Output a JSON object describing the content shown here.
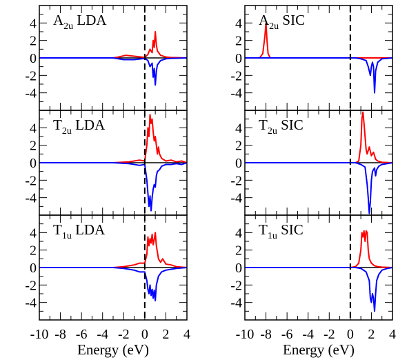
{
  "chart_data": {
    "type": "line",
    "layout": "3 rows x 2 columns, shared axes",
    "xlim": [
      -10,
      4
    ],
    "ylim": [
      -6,
      6
    ],
    "xticks": [
      "-10",
      "-8",
      "-6",
      "-4",
      "-2",
      "0",
      "2",
      "4"
    ],
    "yticks": [
      "4",
      "2",
      "0",
      "-2",
      "-4"
    ],
    "xlabel": "Energy (eV)",
    "fermi_level_x": 0,
    "series_colors": {
      "spin_up": "#ff0000",
      "spin_down": "#0000ff",
      "zero_line": "#000000",
      "fermi_line": "#000000"
    },
    "panels": [
      {
        "id": "a2u-lda",
        "row": 0,
        "col": 0,
        "title_main": "A",
        "title_sub": "2u",
        "title_rest": " LDA",
        "up": [
          [
            -10,
            0
          ],
          [
            -3.0,
            0
          ],
          [
            -2.5,
            0.1
          ],
          [
            -1.8,
            0.3
          ],
          [
            -1.0,
            0.2
          ],
          [
            -0.3,
            0.1
          ],
          [
            0,
            0.05
          ],
          [
            0.3,
            0.4
          ],
          [
            0.5,
            1.0
          ],
          [
            0.7,
            0.6
          ],
          [
            0.8,
            2.0
          ],
          [
            0.9,
            1.2
          ],
          [
            1.0,
            3.0
          ],
          [
            1.1,
            1.5
          ],
          [
            1.2,
            0.8
          ],
          [
            1.5,
            0.3
          ],
          [
            2.0,
            0.1
          ],
          [
            2.5,
            0.05
          ],
          [
            4,
            0
          ]
        ],
        "down": [
          [
            -10,
            0
          ],
          [
            -3.0,
            0
          ],
          [
            -2.0,
            -0.2
          ],
          [
            -1.0,
            -0.2
          ],
          [
            -0.3,
            -0.1
          ],
          [
            0,
            -0.05
          ],
          [
            0.3,
            -0.3
          ],
          [
            0.5,
            -1.0
          ],
          [
            0.7,
            -0.6
          ],
          [
            0.8,
            -2.2
          ],
          [
            0.9,
            -1.2
          ],
          [
            1.0,
            -3.1
          ],
          [
            1.1,
            -1.5
          ],
          [
            1.2,
            -0.8
          ],
          [
            1.5,
            -0.3
          ],
          [
            2.0,
            -0.1
          ],
          [
            2.5,
            -0.05
          ],
          [
            4,
            0
          ]
        ]
      },
      {
        "id": "a2u-sic",
        "row": 0,
        "col": 1,
        "title_main": "A",
        "title_sub": "2u",
        "title_rest": " SIC",
        "up": [
          [
            -10,
            0
          ],
          [
            -8.6,
            0
          ],
          [
            -8.3,
            0.5
          ],
          [
            -8.1,
            2.5
          ],
          [
            -8.0,
            4.0
          ],
          [
            -7.9,
            2.0
          ],
          [
            -7.8,
            0.5
          ],
          [
            -7.6,
            0
          ],
          [
            4,
            0
          ]
        ],
        "down": [
          [
            -10,
            0
          ],
          [
            0.5,
            0
          ],
          [
            1.0,
            -0.1
          ],
          [
            1.5,
            -0.3
          ],
          [
            1.7,
            -1.0
          ],
          [
            1.9,
            -2.0
          ],
          [
            2.0,
            -1.0
          ],
          [
            2.1,
            -0.5
          ],
          [
            2.2,
            -1.0
          ],
          [
            2.3,
            -4.0
          ],
          [
            2.4,
            -1.5
          ],
          [
            2.6,
            -0.5
          ],
          [
            3.0,
            -0.1
          ],
          [
            4,
            0
          ]
        ]
      },
      {
        "id": "t2u-lda",
        "row": 1,
        "col": 0,
        "title_main": "T",
        "title_sub": "2u",
        "title_rest": " LDA",
        "up": [
          [
            -10,
            0
          ],
          [
            -3.0,
            0
          ],
          [
            -1.5,
            0.1
          ],
          [
            -0.5,
            0.3
          ],
          [
            0,
            0.2
          ],
          [
            0.2,
            2.0
          ],
          [
            0.3,
            4.0
          ],
          [
            0.4,
            3.0
          ],
          [
            0.5,
            5.5
          ],
          [
            0.6,
            4.5
          ],
          [
            0.7,
            5.0
          ],
          [
            0.8,
            3.5
          ],
          [
            0.9,
            2.5
          ],
          [
            1.0,
            3.0
          ],
          [
            1.1,
            2.0
          ],
          [
            1.2,
            1.0
          ],
          [
            1.3,
            1.8
          ],
          [
            1.4,
            1.0
          ],
          [
            1.6,
            0.5
          ],
          [
            2.0,
            0.2
          ],
          [
            2.5,
            0.3
          ],
          [
            3.0,
            0.1
          ],
          [
            3.5,
            0.2
          ],
          [
            4,
            0
          ]
        ],
        "down": [
          [
            -10,
            0
          ],
          [
            -3.0,
            0
          ],
          [
            -1.5,
            -0.1
          ],
          [
            -0.5,
            -0.3
          ],
          [
            0,
            -0.2
          ],
          [
            0.2,
            -2.0
          ],
          [
            0.3,
            -3.5
          ],
          [
            0.4,
            -5.0
          ],
          [
            0.5,
            -3.8
          ],
          [
            0.6,
            -5.5
          ],
          [
            0.7,
            -4.0
          ],
          [
            0.8,
            -3.0
          ],
          [
            0.9,
            -2.5
          ],
          [
            1.0,
            -2.8
          ],
          [
            1.1,
            -1.5
          ],
          [
            1.2,
            -1.0
          ],
          [
            1.4,
            -0.8
          ],
          [
            1.6,
            -0.4
          ],
          [
            2.0,
            -0.2
          ],
          [
            2.5,
            -0.2
          ],
          [
            3.0,
            -0.1
          ],
          [
            3.5,
            -0.2
          ],
          [
            4,
            0
          ]
        ]
      },
      {
        "id": "t2u-sic",
        "row": 1,
        "col": 1,
        "title_main": "T",
        "title_sub": "2u",
        "title_rest": " SIC",
        "up": [
          [
            -10,
            0
          ],
          [
            0.5,
            0
          ],
          [
            0.8,
            0.2
          ],
          [
            1.0,
            2.0
          ],
          [
            1.1,
            5.0
          ],
          [
            1.2,
            5.8
          ],
          [
            1.3,
            4.5
          ],
          [
            1.4,
            3.0
          ],
          [
            1.5,
            1.5
          ],
          [
            1.6,
            1.0
          ],
          [
            1.8,
            1.8
          ],
          [
            2.0,
            0.8
          ],
          [
            2.2,
            1.2
          ],
          [
            2.4,
            0.4
          ],
          [
            2.6,
            0.2
          ],
          [
            3.0,
            0.05
          ],
          [
            4,
            0
          ]
        ],
        "down": [
          [
            -10,
            0
          ],
          [
            0.5,
            0
          ],
          [
            1.0,
            -0.2
          ],
          [
            1.4,
            -0.5
          ],
          [
            1.6,
            -2.5
          ],
          [
            1.7,
            -4.0
          ],
          [
            1.8,
            -5.8
          ],
          [
            1.9,
            -4.5
          ],
          [
            2.0,
            -2.0
          ],
          [
            2.1,
            -1.0
          ],
          [
            2.3,
            -0.6
          ],
          [
            2.4,
            -1.5
          ],
          [
            2.5,
            -0.8
          ],
          [
            2.7,
            -0.4
          ],
          [
            3.0,
            -0.2
          ],
          [
            3.5,
            -0.1
          ],
          [
            4,
            0
          ]
        ]
      },
      {
        "id": "t1u-lda",
        "row": 2,
        "col": 0,
        "title_main": "T",
        "title_sub": "1u",
        "title_rest": " LDA",
        "up": [
          [
            -10,
            0
          ],
          [
            -3.0,
            0
          ],
          [
            -2.0,
            0.1
          ],
          [
            -1.0,
            0.3
          ],
          [
            -0.5,
            0.5
          ],
          [
            0,
            0.5
          ],
          [
            0.2,
            1.5
          ],
          [
            0.3,
            3.5
          ],
          [
            0.4,
            2.5
          ],
          [
            0.5,
            3.3
          ],
          [
            0.6,
            2.8
          ],
          [
            0.7,
            3.8
          ],
          [
            0.8,
            2.6
          ],
          [
            0.9,
            3.2
          ],
          [
            1.0,
            4.0
          ],
          [
            1.1,
            2.5
          ],
          [
            1.3,
            1.0
          ],
          [
            1.5,
            0.6
          ],
          [
            1.7,
            1.0
          ],
          [
            2.0,
            0.4
          ],
          [
            2.5,
            0.3
          ],
          [
            3.0,
            0.1
          ],
          [
            4,
            0
          ]
        ],
        "down": [
          [
            -10,
            0
          ],
          [
            -3.0,
            0
          ],
          [
            -2.0,
            -0.1
          ],
          [
            -1.0,
            -0.3
          ],
          [
            -0.5,
            -0.5
          ],
          [
            0,
            -0.5
          ],
          [
            0.2,
            -1.5
          ],
          [
            0.3,
            -2.5
          ],
          [
            0.4,
            -3.0
          ],
          [
            0.5,
            -2.0
          ],
          [
            0.6,
            -3.2
          ],
          [
            0.7,
            -2.5
          ],
          [
            0.8,
            -3.5
          ],
          [
            0.9,
            -2.6
          ],
          [
            1.0,
            -3.8
          ],
          [
            1.1,
            -2.0
          ],
          [
            1.3,
            -1.0
          ],
          [
            1.6,
            -0.5
          ],
          [
            2.0,
            -0.3
          ],
          [
            2.5,
            -0.2
          ],
          [
            3.0,
            -0.1
          ],
          [
            4,
            0
          ]
        ]
      },
      {
        "id": "t1u-sic",
        "row": 2,
        "col": 1,
        "title_main": "T",
        "title_sub": "1u",
        "title_rest": " SIC",
        "up": [
          [
            -10,
            0
          ],
          [
            0,
            0
          ],
          [
            0.5,
            0.1
          ],
          [
            0.8,
            0.5
          ],
          [
            1.0,
            2.0
          ],
          [
            1.1,
            4.0
          ],
          [
            1.2,
            3.5
          ],
          [
            1.3,
            4.2
          ],
          [
            1.4,
            3.0
          ],
          [
            1.5,
            4.2
          ],
          [
            1.6,
            4.0
          ],
          [
            1.7,
            2.0
          ],
          [
            1.8,
            1.0
          ],
          [
            2.0,
            0.5
          ],
          [
            2.3,
            0.2
          ],
          [
            2.6,
            0.1
          ],
          [
            3.0,
            0.05
          ],
          [
            4,
            0
          ]
        ],
        "down": [
          [
            -10,
            0
          ],
          [
            0.5,
            0
          ],
          [
            1.0,
            -0.1
          ],
          [
            1.5,
            -0.5
          ],
          [
            1.8,
            -1.5
          ],
          [
            1.9,
            -3.5
          ],
          [
            2.0,
            -4.0
          ],
          [
            2.1,
            -3.0
          ],
          [
            2.2,
            -3.5
          ],
          [
            2.3,
            -5.0
          ],
          [
            2.4,
            -3.0
          ],
          [
            2.5,
            -1.5
          ],
          [
            2.7,
            -0.8
          ],
          [
            3.0,
            -0.3
          ],
          [
            3.5,
            -0.1
          ],
          [
            4,
            0
          ]
        ]
      }
    ]
  }
}
